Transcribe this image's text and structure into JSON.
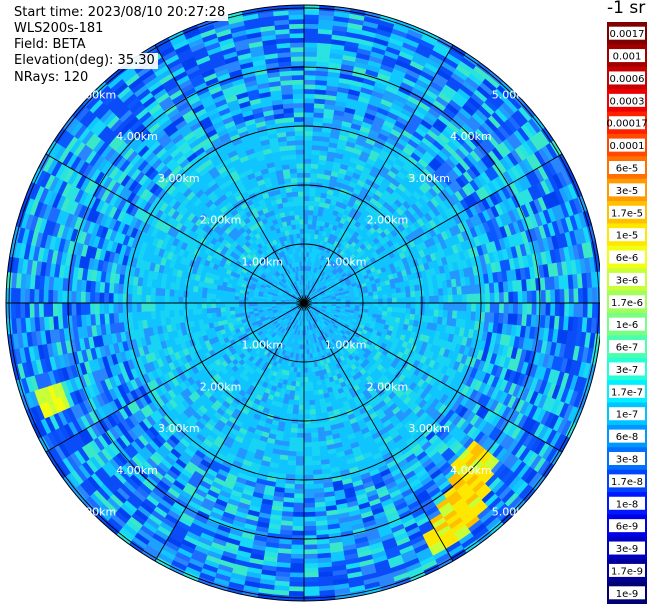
{
  "header": {
    "start_time": "Start time: 2023/08/10 20:27:28",
    "instrument": "WLS200s-181",
    "field": "Field: BETA",
    "elevation": "Elevation(deg): 35.30",
    "nrays": "NRays: 120"
  },
  "colorbar": {
    "unit_title": "-1 sr",
    "labels": [
      "0.0017",
      "0.001",
      "0.0006",
      "0.0003",
      "0.00017",
      "0.0001",
      "6e-5",
      "3e-5",
      "1.7e-5",
      "1e-5",
      "6e-6",
      "3e-6",
      "1.7e-6",
      "1e-6",
      "6e-7",
      "3e-7",
      "1.7e-7",
      "1e-7",
      "6e-8",
      "3e-8",
      "1.7e-8",
      "1e-8",
      "6e-9",
      "3e-9",
      "1.7e-9",
      "1e-9"
    ],
    "colors": [
      "#800000",
      "#a00000",
      "#c80000",
      "#ee0000",
      "#ff2000",
      "#ff4a00",
      "#ff7000",
      "#ff9a00",
      "#ffc000",
      "#ffe800",
      "#f2ff10",
      "#c8ff36",
      "#a0ff5c",
      "#76ff84",
      "#4cffac",
      "#26ffd6",
      "#00f0ff",
      "#00c4ff",
      "#0098ff",
      "#0070ff",
      "#0044ff",
      "#0018ff",
      "#0000e8",
      "#0000c0",
      "#000098",
      "#000070"
    ]
  },
  "chart_data": {
    "type": "heatmap",
    "projection": "polar-ppi",
    "field": "BETA",
    "elevation_deg": 35.3,
    "nrays": 120,
    "range_rings_km": [
      1.0,
      2.0,
      3.0,
      4.0,
      5.0
    ],
    "range_ring_labels": [
      "1.00km",
      "2.00km",
      "3.00km",
      "4.00km",
      "5.00km"
    ],
    "radial_spoke_step_deg": 30,
    "dominant_value_range": "1e-8 to 1e-7",
    "enhanced_regions": [
      {
        "direction": "south-east",
        "range_km": "3.5-4.8",
        "value_approx": "1e-5"
      },
      {
        "direction": "west-south-west",
        "range_km": "4.5-5.0",
        "value_approx": "1e-6"
      }
    ]
  }
}
